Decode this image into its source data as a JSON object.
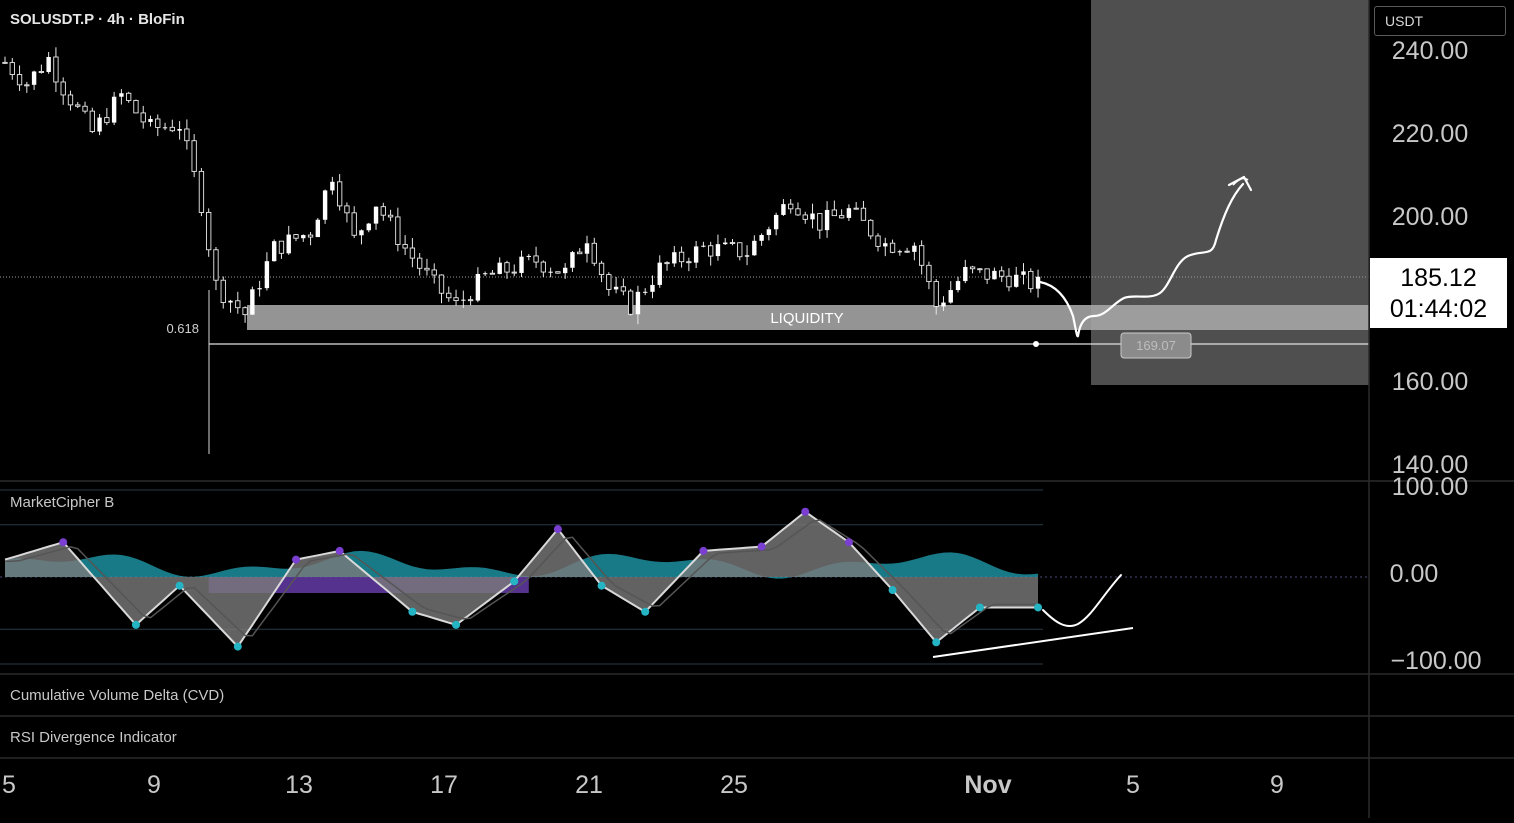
{
  "header": {
    "symbol_line": "SOLUSDT.P · 4h · BloFin",
    "currency_selector": "USDT"
  },
  "price_axis": {
    "labels": [
      "240.00",
      "220.00",
      "200.00",
      "160.00",
      "140.00"
    ],
    "current_price": "185.12",
    "countdown": "01:44:02"
  },
  "annotations": {
    "fib_label": "0.618",
    "zone_label": "LIQUIDITY",
    "target_price": "169.07"
  },
  "indicators": {
    "market_cipher": "MarketCipher B",
    "cvd": "Cumulative Volume Delta (CVD)",
    "rsi": "RSI Divergence Indicator",
    "axis_labels": [
      "100.00",
      "0.00",
      "−100.00"
    ]
  },
  "time_axis": {
    "labels": [
      "5",
      "9",
      "13",
      "17",
      "21",
      "25",
      "Nov",
      "5",
      "9"
    ]
  },
  "chart_data": {
    "type": "candlestick",
    "title": "SOLUSDT.P · 4h · BloFin",
    "ylim": [
      140,
      250
    ],
    "y_ticks": [
      140,
      160,
      200,
      220,
      240
    ],
    "x_ticks": [
      "5",
      "9",
      "13",
      "17",
      "21",
      "25",
      "Nov",
      "5",
      "9"
    ],
    "price_path_anchors": [
      {
        "t": 0.0,
        "p": 237
      },
      {
        "t": 1.5,
        "p": 232
      },
      {
        "t": 3.0,
        "p": 238
      },
      {
        "t": 4.0,
        "p": 231
      },
      {
        "t": 6.0,
        "p": 220
      },
      {
        "t": 8.0,
        "p": 229
      },
      {
        "t": 10.0,
        "p": 221
      },
      {
        "t": 12.0,
        "p": 222
      },
      {
        "t": 13.5,
        "p": 203
      },
      {
        "t": 14.5,
        "p": 183
      },
      {
        "t": 16.5,
        "p": 176
      },
      {
        "t": 18.5,
        "p": 192
      },
      {
        "t": 21.0,
        "p": 196
      },
      {
        "t": 22.5,
        "p": 210
      },
      {
        "t": 24.0,
        "p": 194
      },
      {
        "t": 25.5,
        "p": 203
      },
      {
        "t": 27.5,
        "p": 192
      },
      {
        "t": 29.5,
        "p": 183
      },
      {
        "t": 31.0,
        "p": 178
      },
      {
        "t": 33.0,
        "p": 185
      },
      {
        "t": 36.5,
        "p": 189
      },
      {
        "t": 38.5,
        "p": 186
      },
      {
        "t": 40.0,
        "p": 195
      },
      {
        "t": 41.5,
        "p": 182
      },
      {
        "t": 43.0,
        "p": 178
      },
      {
        "t": 45.0,
        "p": 187
      },
      {
        "t": 48.0,
        "p": 192
      },
      {
        "t": 51.0,
        "p": 191
      },
      {
        "t": 54.0,
        "p": 204
      },
      {
        "t": 56.0,
        "p": 198
      },
      {
        "t": 58.0,
        "p": 201
      },
      {
        "t": 60.5,
        "p": 193
      },
      {
        "t": 62.5,
        "p": 193
      },
      {
        "t": 64.0,
        "p": 178
      },
      {
        "t": 66.0,
        "p": 186
      },
      {
        "t": 69.0,
        "p": 185
      },
      {
        "t": 71.0,
        "p": 183
      }
    ],
    "liquidity_zone": [
      172,
      178
    ],
    "fib_0_618_level": 169.07,
    "current_price": 185.12,
    "projected_path": [
      {
        "date": "Nov 3",
        "p": 172
      },
      {
        "date": "Nov 4",
        "p": 178
      },
      {
        "date": "Nov 6",
        "p": 190
      },
      {
        "date": "Nov 7",
        "p": 196
      },
      {
        "date": "Nov 8",
        "p": 209
      }
    ],
    "oscillator": {
      "name": "MarketCipher B",
      "ylim": [
        -120,
        120
      ],
      "levels": [
        100,
        60,
        0,
        -60,
        -100
      ],
      "wave_anchors": [
        {
          "t": 0,
          "v": 20
        },
        {
          "t": 4,
          "v": 40
        },
        {
          "t": 9,
          "v": -55
        },
        {
          "t": 12,
          "v": -10
        },
        {
          "t": 16,
          "v": -80
        },
        {
          "t": 20,
          "v": 20
        },
        {
          "t": 23,
          "v": 30
        },
        {
          "t": 28,
          "v": -40
        },
        {
          "t": 31,
          "v": -55
        },
        {
          "t": 35,
          "v": -5
        },
        {
          "t": 38,
          "v": 55
        },
        {
          "t": 41,
          "v": -10
        },
        {
          "t": 44,
          "v": -40
        },
        {
          "t": 48,
          "v": 30
        },
        {
          "t": 52,
          "v": 35
        },
        {
          "t": 55,
          "v": 75
        },
        {
          "t": 58,
          "v": 40
        },
        {
          "t": 61,
          "v": -15
        },
        {
          "t": 64,
          "v": -75
        },
        {
          "t": 67,
          "v": -35
        },
        {
          "t": 71,
          "v": -35
        }
      ]
    }
  }
}
